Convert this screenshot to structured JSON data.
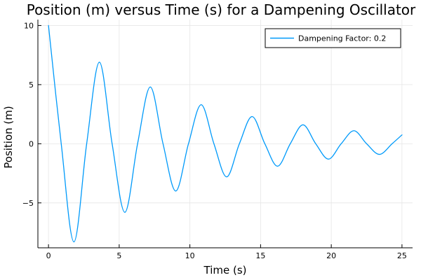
{
  "chart_data": {
    "type": "line",
    "title": "Position (m) versus Time (s) for a Dampening Oscillator",
    "xlabel": "Time (s)",
    "ylabel": "Position (m)",
    "xlim": [
      -0.75,
      25.75
    ],
    "ylim": [
      -8.8,
      10.5
    ],
    "xticks": [
      0,
      5,
      10,
      15,
      20,
      25
    ],
    "xtick_labels": [
      "0",
      "5",
      "10",
      "15",
      "20",
      "25"
    ],
    "yticks": [
      -5,
      0,
      5,
      10
    ],
    "ytick_labels": [
      "−5",
      "0",
      "5",
      "10"
    ],
    "grid": true,
    "legend": {
      "position": "top-right"
    },
    "series": [
      {
        "name": "Dampening Factor: 0.2",
        "color": "#009AFA",
        "x": [
          0,
          0.9,
          1.8,
          2.7,
          3.6,
          4.5,
          5.4,
          6.3,
          7.2,
          8.1,
          9.0,
          9.9,
          10.8,
          11.7,
          12.6,
          13.5,
          14.4,
          15.3,
          16.2,
          17.1,
          18.0,
          18.9,
          19.8,
          20.7,
          21.6,
          22.5,
          23.4,
          24.3,
          25.0
        ],
        "y": [
          10.0,
          0,
          -8.3,
          0,
          6.9,
          0,
          -5.8,
          0,
          4.8,
          0,
          -4.0,
          0,
          3.3,
          0,
          -2.8,
          0,
          2.3,
          0,
          -1.9,
          0,
          1.6,
          0,
          -1.3,
          0,
          1.1,
          0,
          -0.9,
          0,
          0.75
        ]
      }
    ]
  }
}
